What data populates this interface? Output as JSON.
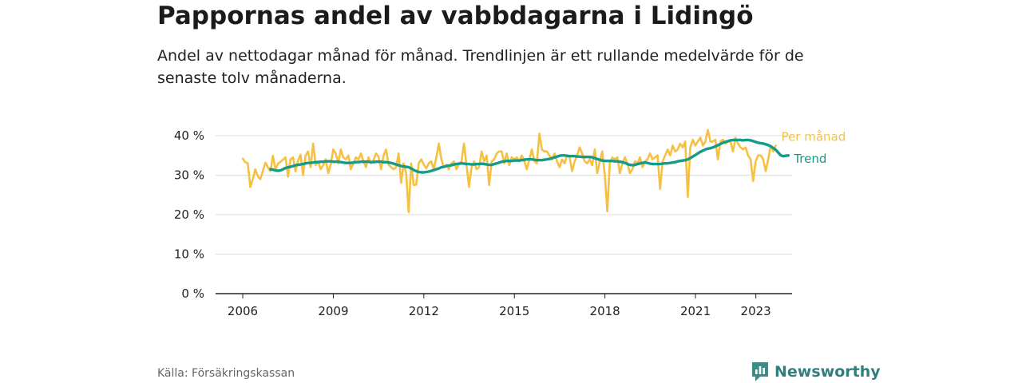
{
  "title": "Pappornas andel av vabbdagarna i Lidingö",
  "subtitle": "Andel av nettodagar månad för månad. Trendlinjen är ett rullande medelvärde för de senaste tolv månaderna.",
  "source": "Källa: Försäkringskassan",
  "brand": "Newsworthy",
  "colors": {
    "monthly": "#f6c143",
    "trend": "#169a89",
    "grid": "#dddddd",
    "axis": "#222222",
    "brand": "#2f7f7c"
  },
  "chart_data": {
    "type": "line",
    "x_unit": "year",
    "xlim": [
      2005.1,
      2024.2
    ],
    "ylim": [
      0,
      40
    ],
    "y_ticks": [
      {
        "value": 0,
        "label": "0 %"
      },
      {
        "value": 10,
        "label": "10 %"
      },
      {
        "value": 20,
        "label": "20 %"
      },
      {
        "value": 30,
        "label": "30 %"
      },
      {
        "value": 40,
        "label": "40 %"
      }
    ],
    "x_ticks": [
      {
        "value": 2006,
        "label": "2006"
      },
      {
        "value": 2009,
        "label": "2009"
      },
      {
        "value": 2012,
        "label": "2012"
      },
      {
        "value": 2015,
        "label": "2015"
      },
      {
        "value": 2018,
        "label": "2018"
      },
      {
        "value": 2021,
        "label": "2021"
      },
      {
        "value": 2023,
        "label": "2023"
      }
    ],
    "grid": true,
    "legend": "end-of-line labels",
    "series": [
      {
        "name": "Per månad",
        "color": "#f6c143",
        "start": 2006.0,
        "step": 0.0833,
        "values": [
          34.2,
          33.3,
          33.0,
          27.0,
          29.0,
          31.5,
          29.7,
          29.0,
          31.1,
          33.2,
          32.0,
          31.0,
          34.9,
          31.5,
          32.9,
          33.4,
          33.9,
          34.5,
          29.6,
          34.0,
          34.5,
          30.9,
          33.7,
          35.2,
          30.0,
          35.0,
          36.0,
          32.0,
          38.0,
          32.5,
          33.5,
          31.5,
          32.5,
          34.0,
          30.5,
          32.7,
          36.5,
          35.5,
          33.0,
          36.5,
          34.4,
          34.0,
          35.0,
          31.5,
          33.0,
          34.5,
          34.0,
          35.5,
          33.5,
          32.0,
          34.5,
          33.0,
          33.8,
          35.5,
          34.7,
          31.5,
          35.0,
          36.5,
          32.7,
          32.0,
          31.5,
          32.0,
          35.5,
          28.0,
          33.0,
          30.5,
          20.6,
          33.0,
          27.5,
          27.6,
          33.0,
          34.0,
          32.7,
          31.7,
          33.0,
          33.5,
          31.5,
          34.5,
          38.0,
          34.0,
          32.0,
          32.6,
          31.5,
          33.0,
          33.5,
          31.5,
          32.8,
          33.5,
          38.0,
          32.5,
          27.0,
          32.0,
          33.5,
          31.5,
          32.0,
          36.0,
          33.5,
          35.0,
          27.5,
          33.5,
          34.0,
          35.5,
          36.0,
          36.0,
          33.0,
          35.5,
          32.5,
          34.5,
          34.0,
          34.5,
          33.5,
          35.0,
          33.5,
          31.5,
          34.0,
          36.5,
          33.5,
          33.0,
          40.5,
          36.5,
          36.0,
          36.0,
          35.0,
          34.0,
          35.5,
          33.5,
          32.0,
          34.0,
          33.0,
          35.0,
          34.5,
          31.0,
          33.5,
          35.0,
          37.0,
          35.5,
          33.5,
          33.0,
          34.0,
          32.5,
          36.5,
          30.5,
          33.5,
          36.0,
          30.0,
          20.8,
          33.0,
          34.5,
          34.0,
          34.5,
          30.5,
          33.0,
          34.5,
          33.0,
          30.5,
          31.5,
          33.5,
          33.0,
          34.5,
          32.0,
          33.5,
          34.0,
          35.5,
          34.0,
          34.5,
          35.0,
          26.5,
          33.5,
          35.0,
          36.5,
          35.0,
          37.5,
          36.0,
          36.5,
          38.0,
          37.0,
          38.5,
          24.5,
          37.0,
          39.0,
          37.5,
          38.5,
          39.5,
          37.5,
          38.5,
          41.5,
          38.5,
          38.5,
          39.0,
          34.0,
          38.5,
          39.0,
          38.0,
          38.5,
          38.5,
          36.0,
          39.5,
          38.0,
          37.0,
          36.5,
          37.0,
          35.0,
          34.0,
          28.5,
          33.5,
          35.0,
          35.0,
          34.0,
          31.0,
          34.0,
          37.5,
          36.0,
          37.5
        ]
      },
      {
        "name": "Trend",
        "color": "#169a89",
        "start": 2006.917,
        "step": 0.0833,
        "values": [
          31.5,
          31.4,
          31.2,
          31.1,
          31.2,
          31.5,
          31.8,
          32.0,
          32.1,
          32.3,
          32.5,
          32.6,
          32.7,
          32.8,
          33.0,
          33.1,
          33.1,
          33.2,
          33.3,
          33.3,
          33.4,
          33.4,
          33.5,
          33.5,
          33.5,
          33.4,
          33.4,
          33.4,
          33.3,
          33.2,
          33.1,
          33.1,
          33.1,
          33.2,
          33.3,
          33.3,
          33.4,
          33.4,
          33.4,
          33.4,
          33.3,
          33.3,
          33.4,
          33.4,
          33.4,
          33.3,
          33.3,
          33.2,
          33.1,
          32.9,
          32.7,
          32.5,
          32.3,
          32.2,
          32.1,
          32.0,
          31.7,
          31.3,
          31.0,
          30.8,
          30.7,
          30.7,
          30.8,
          30.9,
          31.1,
          31.3,
          31.5,
          31.7,
          32.0,
          32.1,
          32.3,
          32.4,
          32.5,
          32.7,
          32.8,
          32.9,
          33.0,
          32.9,
          32.8,
          32.8,
          32.7,
          32.7,
          32.8,
          32.8,
          32.9,
          32.8,
          32.7,
          32.6,
          32.6,
          32.8,
          33.0,
          33.2,
          33.4,
          33.5,
          33.6,
          33.6,
          33.6,
          33.7,
          33.7,
          33.7,
          33.8,
          33.9,
          34.0,
          34.0,
          34.0,
          33.9,
          33.8,
          33.8,
          33.8,
          33.9,
          34.0,
          34.1,
          34.3,
          34.5,
          34.7,
          34.9,
          35.0,
          35.0,
          34.9,
          34.8,
          34.8,
          34.8,
          34.7,
          34.7,
          34.6,
          34.6,
          34.6,
          34.6,
          34.5,
          34.3,
          34.1,
          33.9,
          33.7,
          33.6,
          33.6,
          33.6,
          33.6,
          33.5,
          33.5,
          33.4,
          33.3,
          33.1,
          32.8,
          32.6,
          32.5,
          32.6,
          32.8,
          33.0,
          33.1,
          33.2,
          33.1,
          32.9,
          32.8,
          32.8,
          32.8,
          32.8,
          32.9,
          33.0,
          33.0,
          33.1,
          33.2,
          33.3,
          33.5,
          33.6,
          33.7,
          33.8,
          34.0,
          34.3,
          34.7,
          35.1,
          35.5,
          35.9,
          36.2,
          36.5,
          36.7,
          36.8,
          37.0,
          37.3,
          37.6,
          37.9,
          38.2,
          38.4,
          38.6,
          38.8,
          38.9,
          38.9,
          38.9,
          38.9,
          38.8,
          38.9,
          38.9,
          38.8,
          38.6,
          38.4,
          38.2,
          38.1,
          38.0,
          37.8,
          37.6,
          37.3,
          36.9,
          36.4,
          35.7,
          35.0,
          34.8,
          34.9,
          35.0
        ]
      }
    ]
  }
}
